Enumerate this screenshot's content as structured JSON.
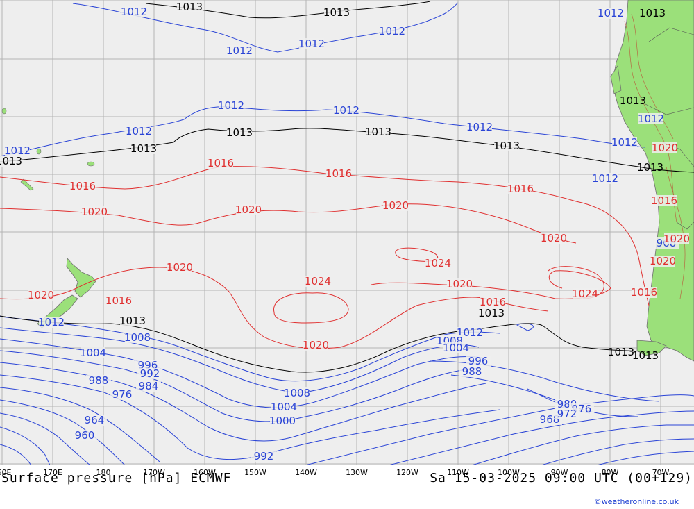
{
  "title_left": "Surface pressure [hPa] ECMWF",
  "title_right": "Sa 15-03-2025 09:00 UTC (00+129)",
  "credit": "©weatheronline.co.uk",
  "lon_labels": [
    "60E",
    "170E",
    "180",
    "170W",
    "160W",
    "150W",
    "140W",
    "130W",
    "120W",
    "110W",
    "100W",
    "90W",
    "80W",
    "70W"
  ],
  "colors": {
    "ocean": "#eeeeee",
    "land": "#9be07a",
    "grid": "#b4b4b4",
    "low": "#2a44d6",
    "ref": "#000000",
    "high": "#e03030"
  },
  "isobar_labels": {
    "blue": [
      "1012",
      "1012",
      "1012",
      "1012",
      "1012",
      "1012",
      "1012",
      "1012",
      "1012",
      "1012",
      "1012",
      "1012",
      "1012",
      "1012",
      "1012",
      "1012",
      "1008",
      "1008",
      "1004",
      "1004",
      "1004",
      "1000",
      "1008",
      "996",
      "996",
      "992",
      "988",
      "988",
      "984",
      "976",
      "968",
      "964",
      "960",
      "992",
      "980",
      "976",
      "972",
      "968"
    ],
    "black": [
      "1013",
      "1013",
      "1013",
      "1013",
      "1013",
      "1013",
      "1013",
      "1013",
      "1013",
      "1013",
      "1013",
      "1013",
      "1013",
      "1013"
    ],
    "red": [
      "1016",
      "1016",
      "1016",
      "1016",
      "1016",
      "1016",
      "1016",
      "1016",
      "1020",
      "1020",
      "1020",
      "1020",
      "1020",
      "1020",
      "1020",
      "1020",
      "1020",
      "1020",
      "1020",
      "1024",
      "1024",
      "1024"
    ]
  }
}
